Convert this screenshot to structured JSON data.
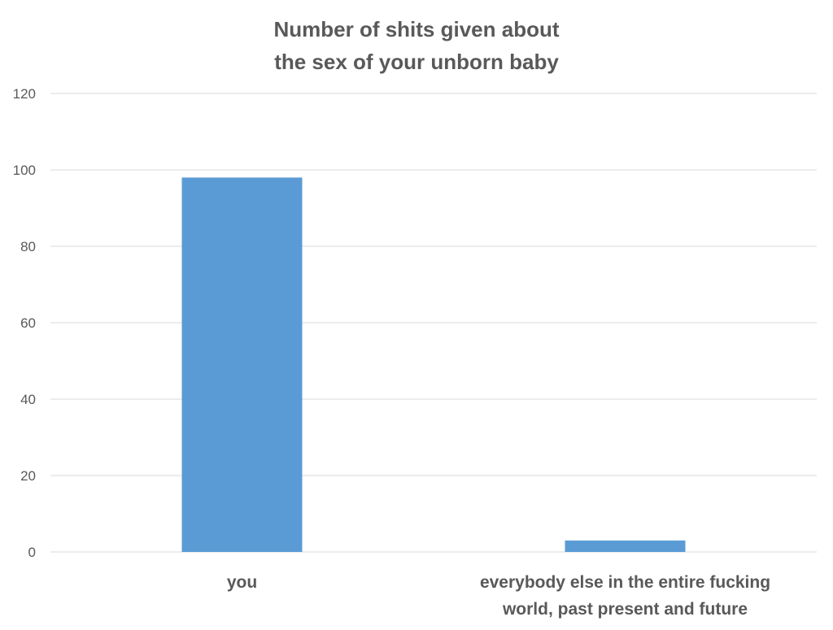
{
  "chart_data": {
    "type": "bar",
    "title_lines": [
      "Number of shits given about",
      "the sex of your unborn baby"
    ],
    "categories": [
      [
        "you"
      ],
      [
        "everybody else in the entire fucking",
        "world, past present and future"
      ]
    ],
    "values": [
      98,
      3
    ],
    "ylim": [
      0,
      120
    ],
    "yticks": [
      "0",
      "20",
      "40",
      "60",
      "80",
      "100",
      "120"
    ],
    "grid": true,
    "legend": "none",
    "bar_color": "#5b9bd5",
    "grid_color": "#d9d9d9",
    "text_color": "#595959"
  }
}
